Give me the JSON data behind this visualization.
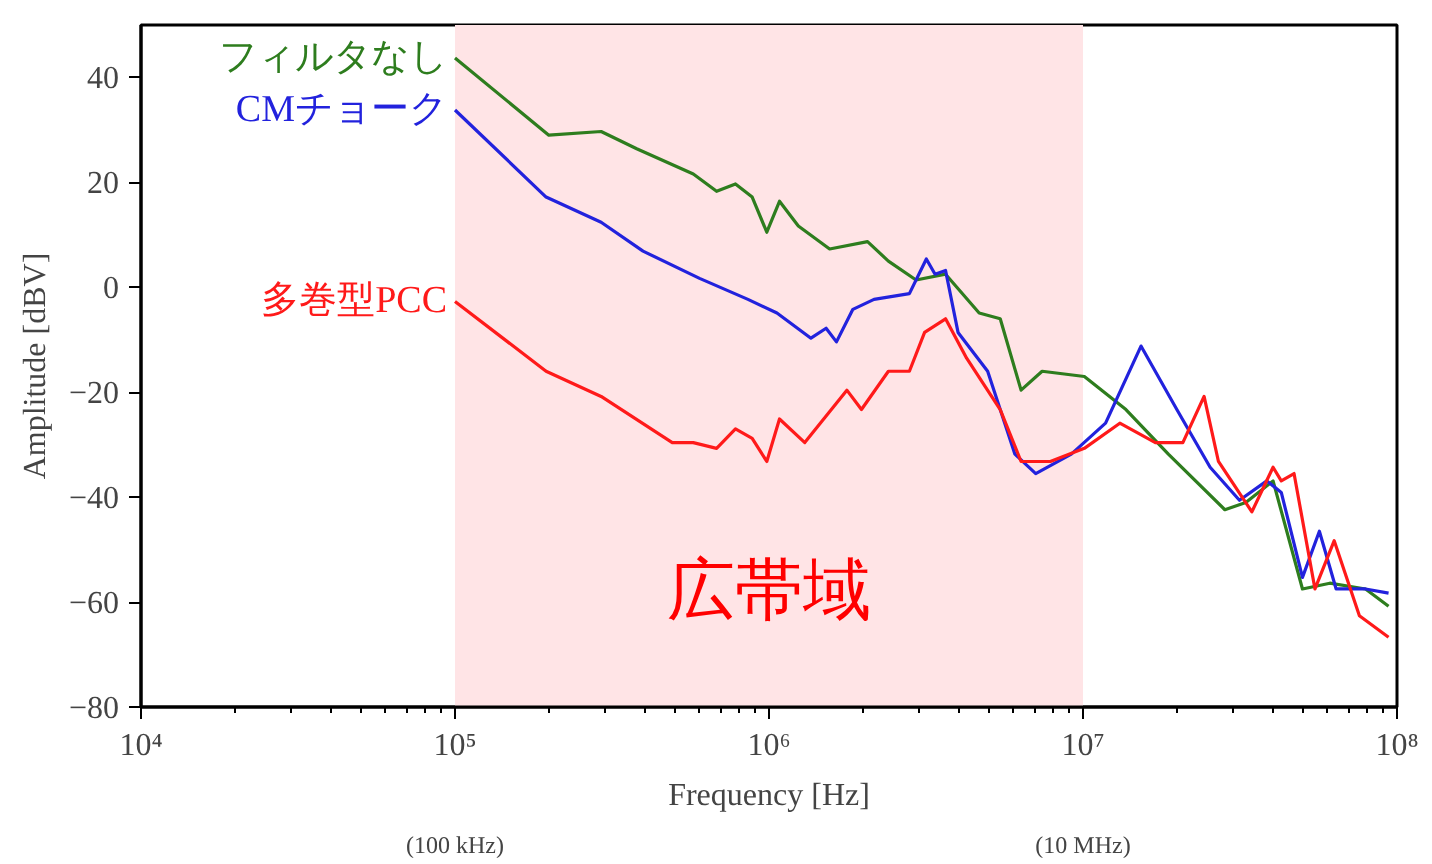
{
  "chart_data": {
    "type": "line",
    "xlabel": "Frequency [Hz]",
    "ylabel": "Amplitude [dBV]",
    "log": "x",
    "grid": false,
    "legend": false,
    "xlim": [
      10000,
      100000000
    ],
    "ylim": [
      -80,
      50
    ],
    "xticks": [
      {
        "value": 10000,
        "label": "10⁴"
      },
      {
        "value": 100000,
        "label": "10⁵"
      },
      {
        "value": 1000000,
        "label": "10⁶"
      },
      {
        "value": 10000000,
        "label": "10⁷"
      },
      {
        "value": 100000000,
        "label": "10⁸"
      }
    ],
    "yticks": [
      {
        "value": -80,
        "label": "−80"
      },
      {
        "value": -60,
        "label": "−60"
      },
      {
        "value": -40,
        "label": "−40"
      },
      {
        "value": -20,
        "label": "−20"
      },
      {
        "value": 0,
        "label": "0"
      },
      {
        "value": 20,
        "label": "20"
      },
      {
        "value": 40,
        "label": "40"
      }
    ],
    "bands": [
      {
        "axis": "x",
        "from": 100000,
        "to": 10000000,
        "label": "広帯域",
        "color": "#ffe4e6"
      }
    ],
    "annotations": [
      "(100 kHz)",
      "(10 MHz)"
    ],
    "series": [
      {
        "name": "フィルタなし",
        "color": "#2e7d1e",
        "x": [
          100000,
          199000,
          292000,
          379000,
          574000,
          681000,
          782000,
          884000,
          984000,
          1080000,
          1240000,
          1560000,
          2060000,
          2400000,
          2940000,
          3650000,
          4670000,
          5450000,
          6350000,
          7410000,
          10100000,
          13700000,
          18700000,
          28300000,
          33000000,
          40300000,
          50000000,
          61100000,
          79400000,
          94000000
        ],
        "values": [
          43.7,
          29,
          29.7,
          26.4,
          21.6,
          18.3,
          19.7,
          17.2,
          10.5,
          16.4,
          11.7,
          7.3,
          8.7,
          5,
          1.4,
          2.5,
          -4.9,
          -6,
          -19.6,
          -16,
          -17,
          -23.3,
          -31.8,
          -42.4,
          -41,
          -36.9,
          -57.5,
          -56.4,
          -57.5,
          -60.8
        ]
      },
      {
        "name": "CMチョーク",
        "color": "#2222dd",
        "x": [
          100000,
          195000,
          292000,
          397000,
          601000,
          857000,
          1060000,
          1360000,
          1520000,
          1640000,
          1850000,
          2160000,
          2800000,
          3170000,
          3380000,
          3650000,
          4000000,
          4970000,
          6070000,
          7070000,
          9180000,
          11800000,
          15300000,
          19900000,
          25400000,
          31500000,
          38500000,
          42800000,
          50000000,
          56600000,
          64000000,
          79400000,
          94000000
        ],
        "values": [
          33.8,
          17.2,
          12.4,
          6.9,
          1.7,
          -2.3,
          -4.9,
          -9.7,
          -7.8,
          -10.4,
          -4.2,
          -2.3,
          -1.2,
          5.4,
          2.5,
          3.2,
          -8.6,
          -16,
          -31.8,
          -35.5,
          -31.8,
          -25.9,
          -11.2,
          -23.3,
          -34.3,
          -40.6,
          -36.9,
          -39.1,
          -55.3,
          -46.5,
          -57.5,
          -57.5,
          -58.3
        ]
      },
      {
        "name": "多巻型PCC",
        "color": "#ff1a1a",
        "x": [
          100000,
          195000,
          292000,
          492000,
          574000,
          681000,
          782000,
          884000,
          984000,
          1080000,
          1300000,
          1770000,
          1970000,
          2400000,
          2800000,
          3130000,
          3650000,
          4260000,
          5450000,
          6350000,
          7870000,
          10100000,
          13100000,
          17000000,
          20800000,
          24300000,
          27000000,
          34500000,
          40300000,
          42800000,
          47000000,
          54800000,
          63100000,
          75900000,
          94000000
        ],
        "values": [
          -2.7,
          -16,
          -20.8,
          -29.6,
          -29.6,
          -30.7,
          -27,
          -28.8,
          -33.2,
          -25.1,
          -29.6,
          -19.6,
          -23.3,
          -16,
          -16,
          -8.6,
          -6,
          -13.5,
          -23.3,
          -33.2,
          -33.2,
          -30.7,
          -25.9,
          -29.6,
          -29.6,
          -20.8,
          -33.2,
          -42.8,
          -34.3,
          -36.9,
          -35.5,
          -57.5,
          -48.3,
          -62.6,
          -66.7
        ]
      }
    ]
  }
}
